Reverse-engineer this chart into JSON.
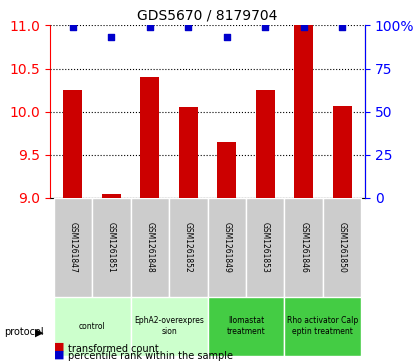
{
  "title": "GDS5670 / 8179704",
  "samples": [
    "GSM1261847",
    "GSM1261851",
    "GSM1261848",
    "GSM1261852",
    "GSM1261849",
    "GSM1261853",
    "GSM1261846",
    "GSM1261850"
  ],
  "transformed_counts": [
    10.25,
    9.05,
    10.4,
    10.05,
    9.65,
    10.25,
    11.0,
    10.07
  ],
  "percentile_ranks": [
    99,
    93,
    99,
    99,
    93,
    99,
    99,
    99
  ],
  "protocols": [
    {
      "label": "control",
      "samples": [
        0,
        1
      ],
      "color": "#ccffcc"
    },
    {
      "label": "EphA2-overexpres\nsion",
      "samples": [
        2,
        3
      ],
      "color": "#ccffcc"
    },
    {
      "label": "Ilomastat\ntreatment",
      "samples": [
        4,
        5
      ],
      "color": "#44cc44"
    },
    {
      "label": "Rho activator Calp\neptin treatment",
      "samples": [
        6,
        7
      ],
      "color": "#44cc44"
    }
  ],
  "ylim_left": [
    9.0,
    11.0
  ],
  "ylim_right": [
    0,
    100
  ],
  "yticks_left": [
    9.0,
    9.5,
    10.0,
    10.5,
    11.0
  ],
  "yticks_right": [
    0,
    25,
    50,
    75,
    100
  ],
  "bar_color": "#cc0000",
  "dot_color": "#0000cc",
  "grid_color": "#000000",
  "bg_color": "#cccccc",
  "plot_bg": "#ffffff"
}
